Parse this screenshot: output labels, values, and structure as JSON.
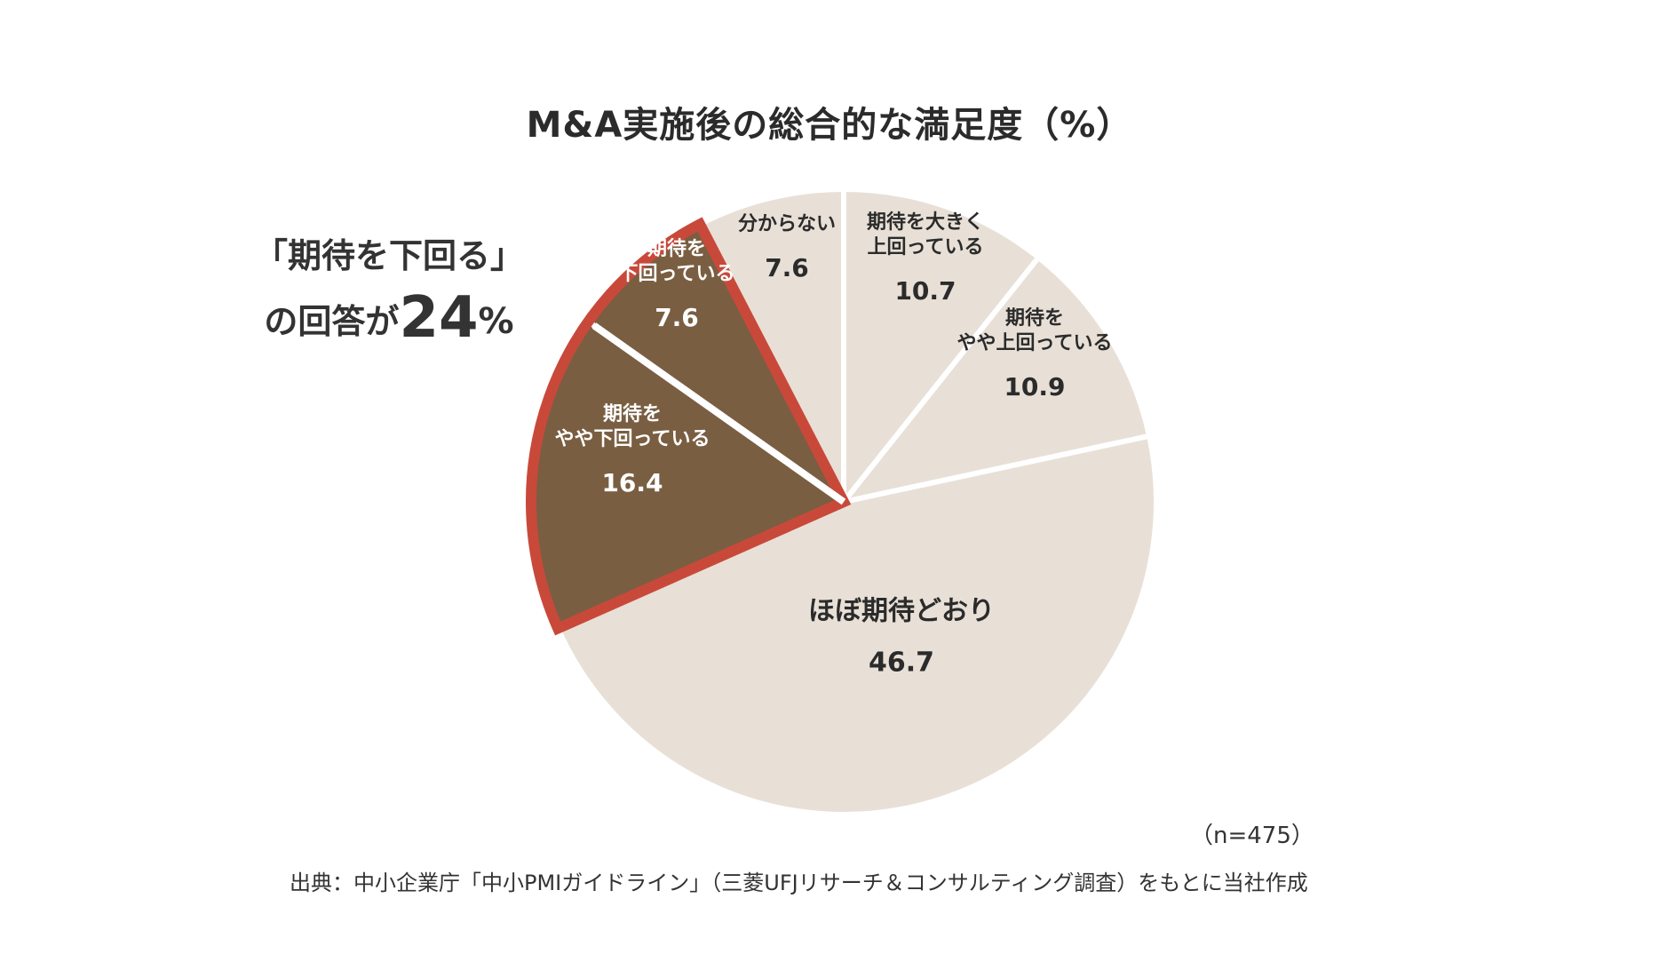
{
  "chart_data": {
    "type": "pie",
    "title": "M&A実施後の総合的な満足度（%）",
    "slices": [
      {
        "lines": [
          "期待を大きく",
          "上回っている"
        ],
        "value": 10.7,
        "value_label": "10.7",
        "color": "#e8e0d7",
        "text_color": "#2b2b2b",
        "highlight": false
      },
      {
        "lines": [
          "期待を",
          "やや上回っている"
        ],
        "value": 10.9,
        "value_label": "10.9",
        "color": "#e8e0d7",
        "text_color": "#2b2b2b",
        "highlight": false
      },
      {
        "lines": [
          "ほぼ期待どおり"
        ],
        "value": 46.7,
        "value_label": "46.7",
        "color": "#e8e0d7",
        "text_color": "#2b2b2b",
        "highlight": false
      },
      {
        "lines": [
          "期待を",
          "やや下回っている"
        ],
        "value": 16.4,
        "value_label": "16.4",
        "color": "#7a5e42",
        "text_color": "#ffffff",
        "highlight": true
      },
      {
        "lines": [
          "期待を",
          "下回っている"
        ],
        "value": 7.6,
        "value_label": "7.6",
        "color": "#7a5e42",
        "text_color": "#ffffff",
        "highlight": true
      },
      {
        "lines": [
          "分からない"
        ],
        "value": 7.6,
        "value_label": "7.6",
        "color": "#e8e0d7",
        "text_color": "#2b2b2b",
        "highlight": false
      }
    ],
    "start_angle_deg": 0,
    "direction": "clockwise",
    "highlight_color": "#c8493a",
    "separator_color": "#ffffff",
    "sample_size": "（n=475）",
    "source": "出典：中小企業庁「中小PMIガイドライン」（三菱UFJリサーチ＆コンサルティング調査）をもとに当社作成"
  },
  "callout": {
    "line1": "「期待を下回る」",
    "line2_prefix": "の回答が",
    "line2_number": "24",
    "line2_suffix": "%"
  }
}
